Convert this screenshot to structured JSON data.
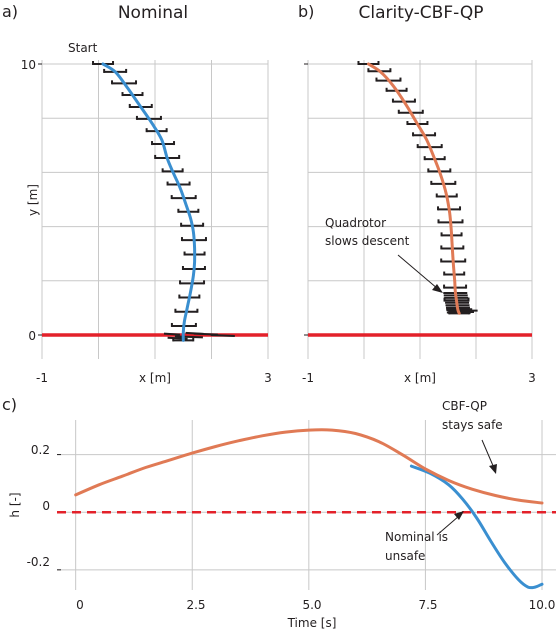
{
  "panel_labels": {
    "a": "a)",
    "b": "b)",
    "c": "c)"
  },
  "colors": {
    "nominal": "#3a8fd0",
    "cbf": "#e07a55",
    "ground": "#e3212a",
    "grid": "#c8c8c8",
    "marker": "#231f20"
  },
  "chart_data": [
    {
      "id": "a",
      "type": "line",
      "title": "Nominal",
      "xlabel": "x [m]",
      "ylabel": "y [m]",
      "xlim": [
        -1,
        3
      ],
      "ylim": [
        0,
        10
      ],
      "xticks": [
        -1,
        3
      ],
      "yticks": [
        0,
        10
      ],
      "grid": true,
      "ground_line_y": 0,
      "annotations": [
        {
          "text": "Start"
        }
      ],
      "series": [
        {
          "x": [
            0.08,
            0.3,
            0.52,
            0.72,
            0.95,
            1.12,
            1.22,
            1.32,
            1.45,
            1.55,
            1.63,
            1.68,
            1.7,
            1.7,
            1.68,
            1.63,
            1.57,
            1.52,
            1.5,
            1.5
          ],
          "y": [
            10.0,
            9.7,
            9.1,
            8.5,
            7.8,
            7.2,
            6.5,
            6.0,
            5.4,
            4.8,
            4.3,
            3.8,
            3.2,
            2.7,
            2.2,
            1.6,
            1.0,
            0.5,
            0.1,
            -0.2
          ]
        }
      ]
    },
    {
      "id": "b",
      "type": "line",
      "title": "Clarity-CBF-QP",
      "xlabel": "x [m]",
      "xlim": [
        -1,
        3
      ],
      "ylim": [
        0,
        10
      ],
      "xticks": [
        -1,
        3
      ],
      "grid": true,
      "ground_line_y": 0,
      "annotations": [
        {
          "text": "Quadrotor slows descent",
          "line1": "Quadrotor",
          "line2": "slows descent"
        }
      ],
      "series": [
        {
          "x": [
            0.08,
            0.3,
            0.52,
            0.75,
            0.95,
            1.12,
            1.26,
            1.37,
            1.47,
            1.53,
            1.56,
            1.58,
            1.6,
            1.62,
            1.63,
            1.65,
            1.67,
            1.68,
            1.7
          ],
          "y": [
            10.0,
            9.7,
            9.2,
            8.5,
            7.8,
            7.2,
            6.5,
            5.9,
            5.2,
            4.5,
            3.8,
            3.1,
            2.5,
            2.0,
            1.6,
            1.3,
            1.0,
            0.9,
            0.8
          ]
        }
      ]
    },
    {
      "id": "c",
      "type": "line",
      "xlabel": "Time [s]",
      "ylabel": "h [-]",
      "xlim": [
        -0.4,
        10.3
      ],
      "ylim": [
        -0.27,
        0.32
      ],
      "xticks": [
        "0",
        "2.5",
        "5.0",
        "7.5",
        "10.0"
      ],
      "yticks": [
        "0.2",
        "0",
        "-0.2"
      ],
      "grid": true,
      "safety_threshold": 0,
      "annotations": [
        {
          "text": "CBF-QP stays safe",
          "line1": "CBF-QP",
          "line2": "stays safe"
        },
        {
          "text": "Nominal is unsafe",
          "line1": "Nominal is",
          "line2": "unsafe"
        }
      ],
      "series": [
        {
          "color": "nominal",
          "x": [
            7.2,
            7.6,
            8.0,
            8.3,
            8.6,
            8.9,
            9.2,
            9.5,
            9.7,
            9.85,
            10.0
          ],
          "y": [
            0.16,
            0.135,
            0.095,
            0.045,
            -0.02,
            -0.1,
            -0.175,
            -0.235,
            -0.26,
            -0.26,
            -0.25
          ]
        },
        {
          "color": "cbf",
          "x": [
            0,
            0.5,
            1.0,
            1.5,
            2.0,
            2.5,
            3.0,
            3.5,
            4.0,
            4.5,
            5.0,
            5.5,
            6.0,
            6.5,
            7.0,
            7.5,
            8.0,
            8.5,
            9.0,
            9.5,
            10.0
          ],
          "y": [
            0.06,
            0.095,
            0.125,
            0.155,
            0.18,
            0.205,
            0.228,
            0.248,
            0.265,
            0.278,
            0.285,
            0.285,
            0.273,
            0.245,
            0.2,
            0.15,
            0.11,
            0.08,
            0.058,
            0.042,
            0.032
          ]
        }
      ]
    }
  ]
}
